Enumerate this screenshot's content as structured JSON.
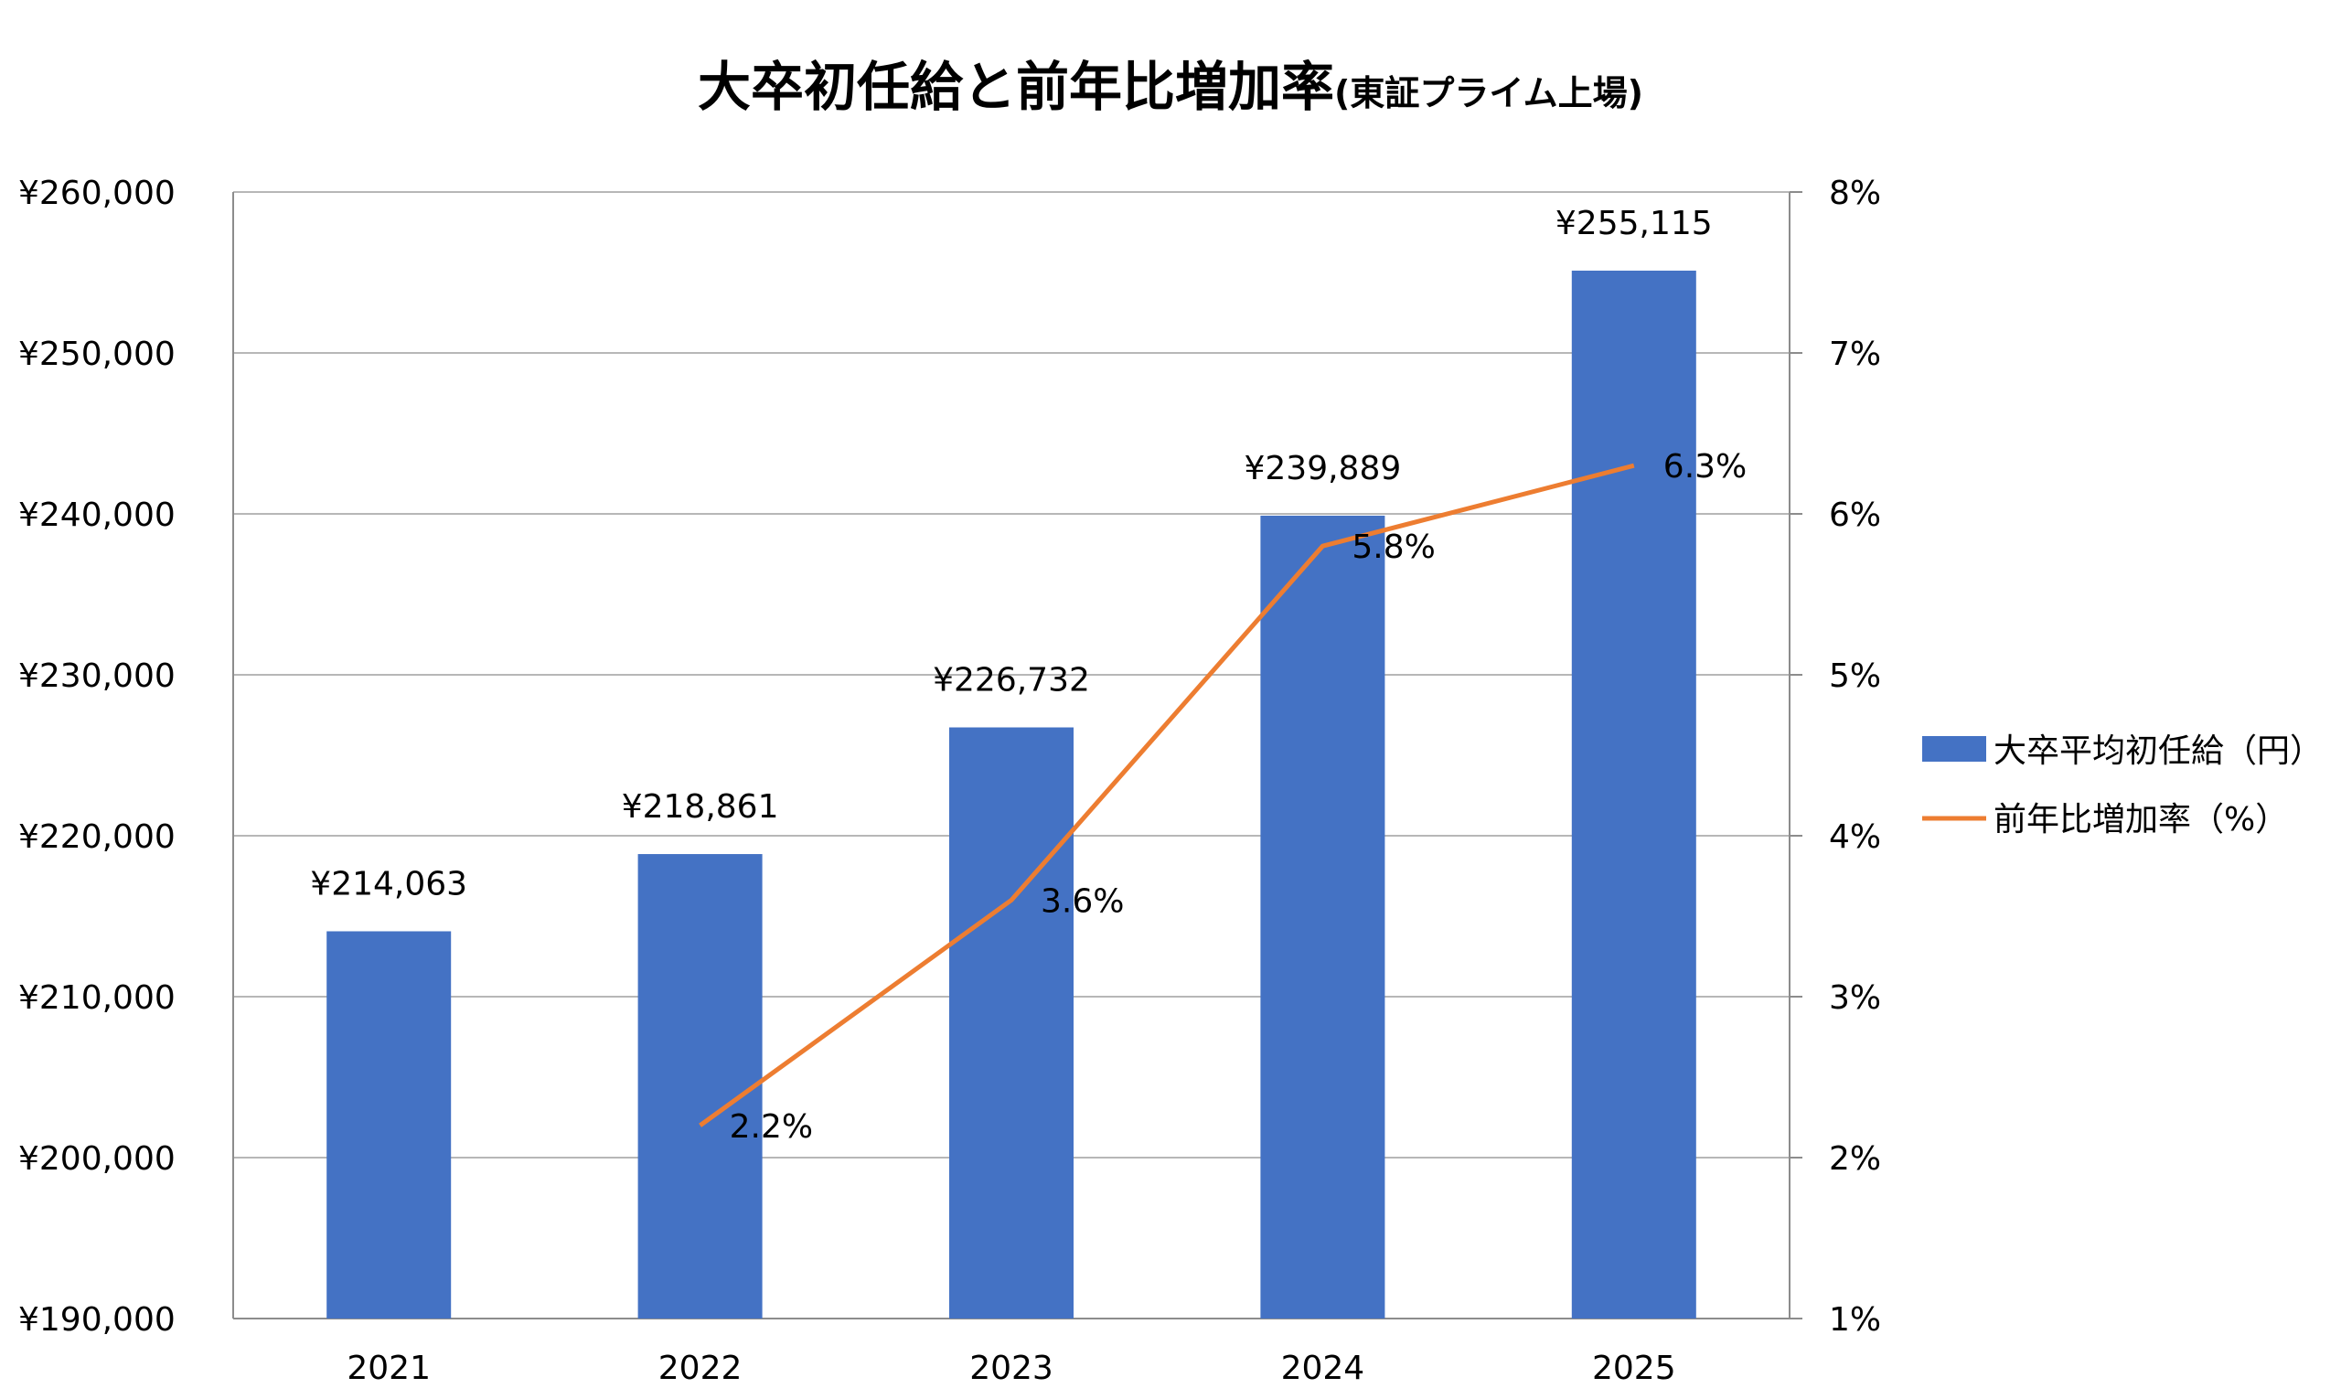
{
  "chart_data": {
    "type": "bar",
    "title": "大卒初任給と前年比増加率",
    "subtitle": "(東証プライム上場)",
    "categories": [
      "2021",
      "2022",
      "2023",
      "2024",
      "2025"
    ],
    "series": [
      {
        "name": "大卒平均初任給（円）",
        "type": "bar",
        "axis": "left",
        "color": "#4472C4",
        "values": [
          214063,
          218861,
          226732,
          239889,
          255115
        ],
        "labels": [
          "¥214,063",
          "¥218,861",
          "¥226,732",
          "¥239,889",
          "¥255,115"
        ]
      },
      {
        "name": "前年比増加率（%）",
        "type": "line",
        "axis": "right",
        "color": "#ED7D31",
        "values": [
          null,
          2.2,
          3.6,
          5.8,
          6.3
        ],
        "labels": [
          "",
          "2.2%",
          "3.6%",
          "5.8%",
          "6.3%"
        ]
      }
    ],
    "left_axis": {
      "ylim": [
        190000,
        260000
      ],
      "ticks": [
        190000,
        200000,
        210000,
        220000,
        230000,
        240000,
        250000,
        260000
      ],
      "tick_labels": [
        "¥190,000",
        "¥200,000",
        "¥210,000",
        "¥220,000",
        "¥230,000",
        "¥240,000",
        "¥250,000",
        "¥260,000"
      ]
    },
    "right_axis": {
      "ylim": [
        1,
        8
      ],
      "ticks": [
        1,
        2,
        3,
        4,
        5,
        6,
        7,
        8
      ],
      "tick_labels": [
        "1%",
        "2%",
        "3%",
        "4%",
        "5%",
        "6%",
        "7%",
        "8%"
      ]
    },
    "grid": true,
    "legend": "right"
  }
}
